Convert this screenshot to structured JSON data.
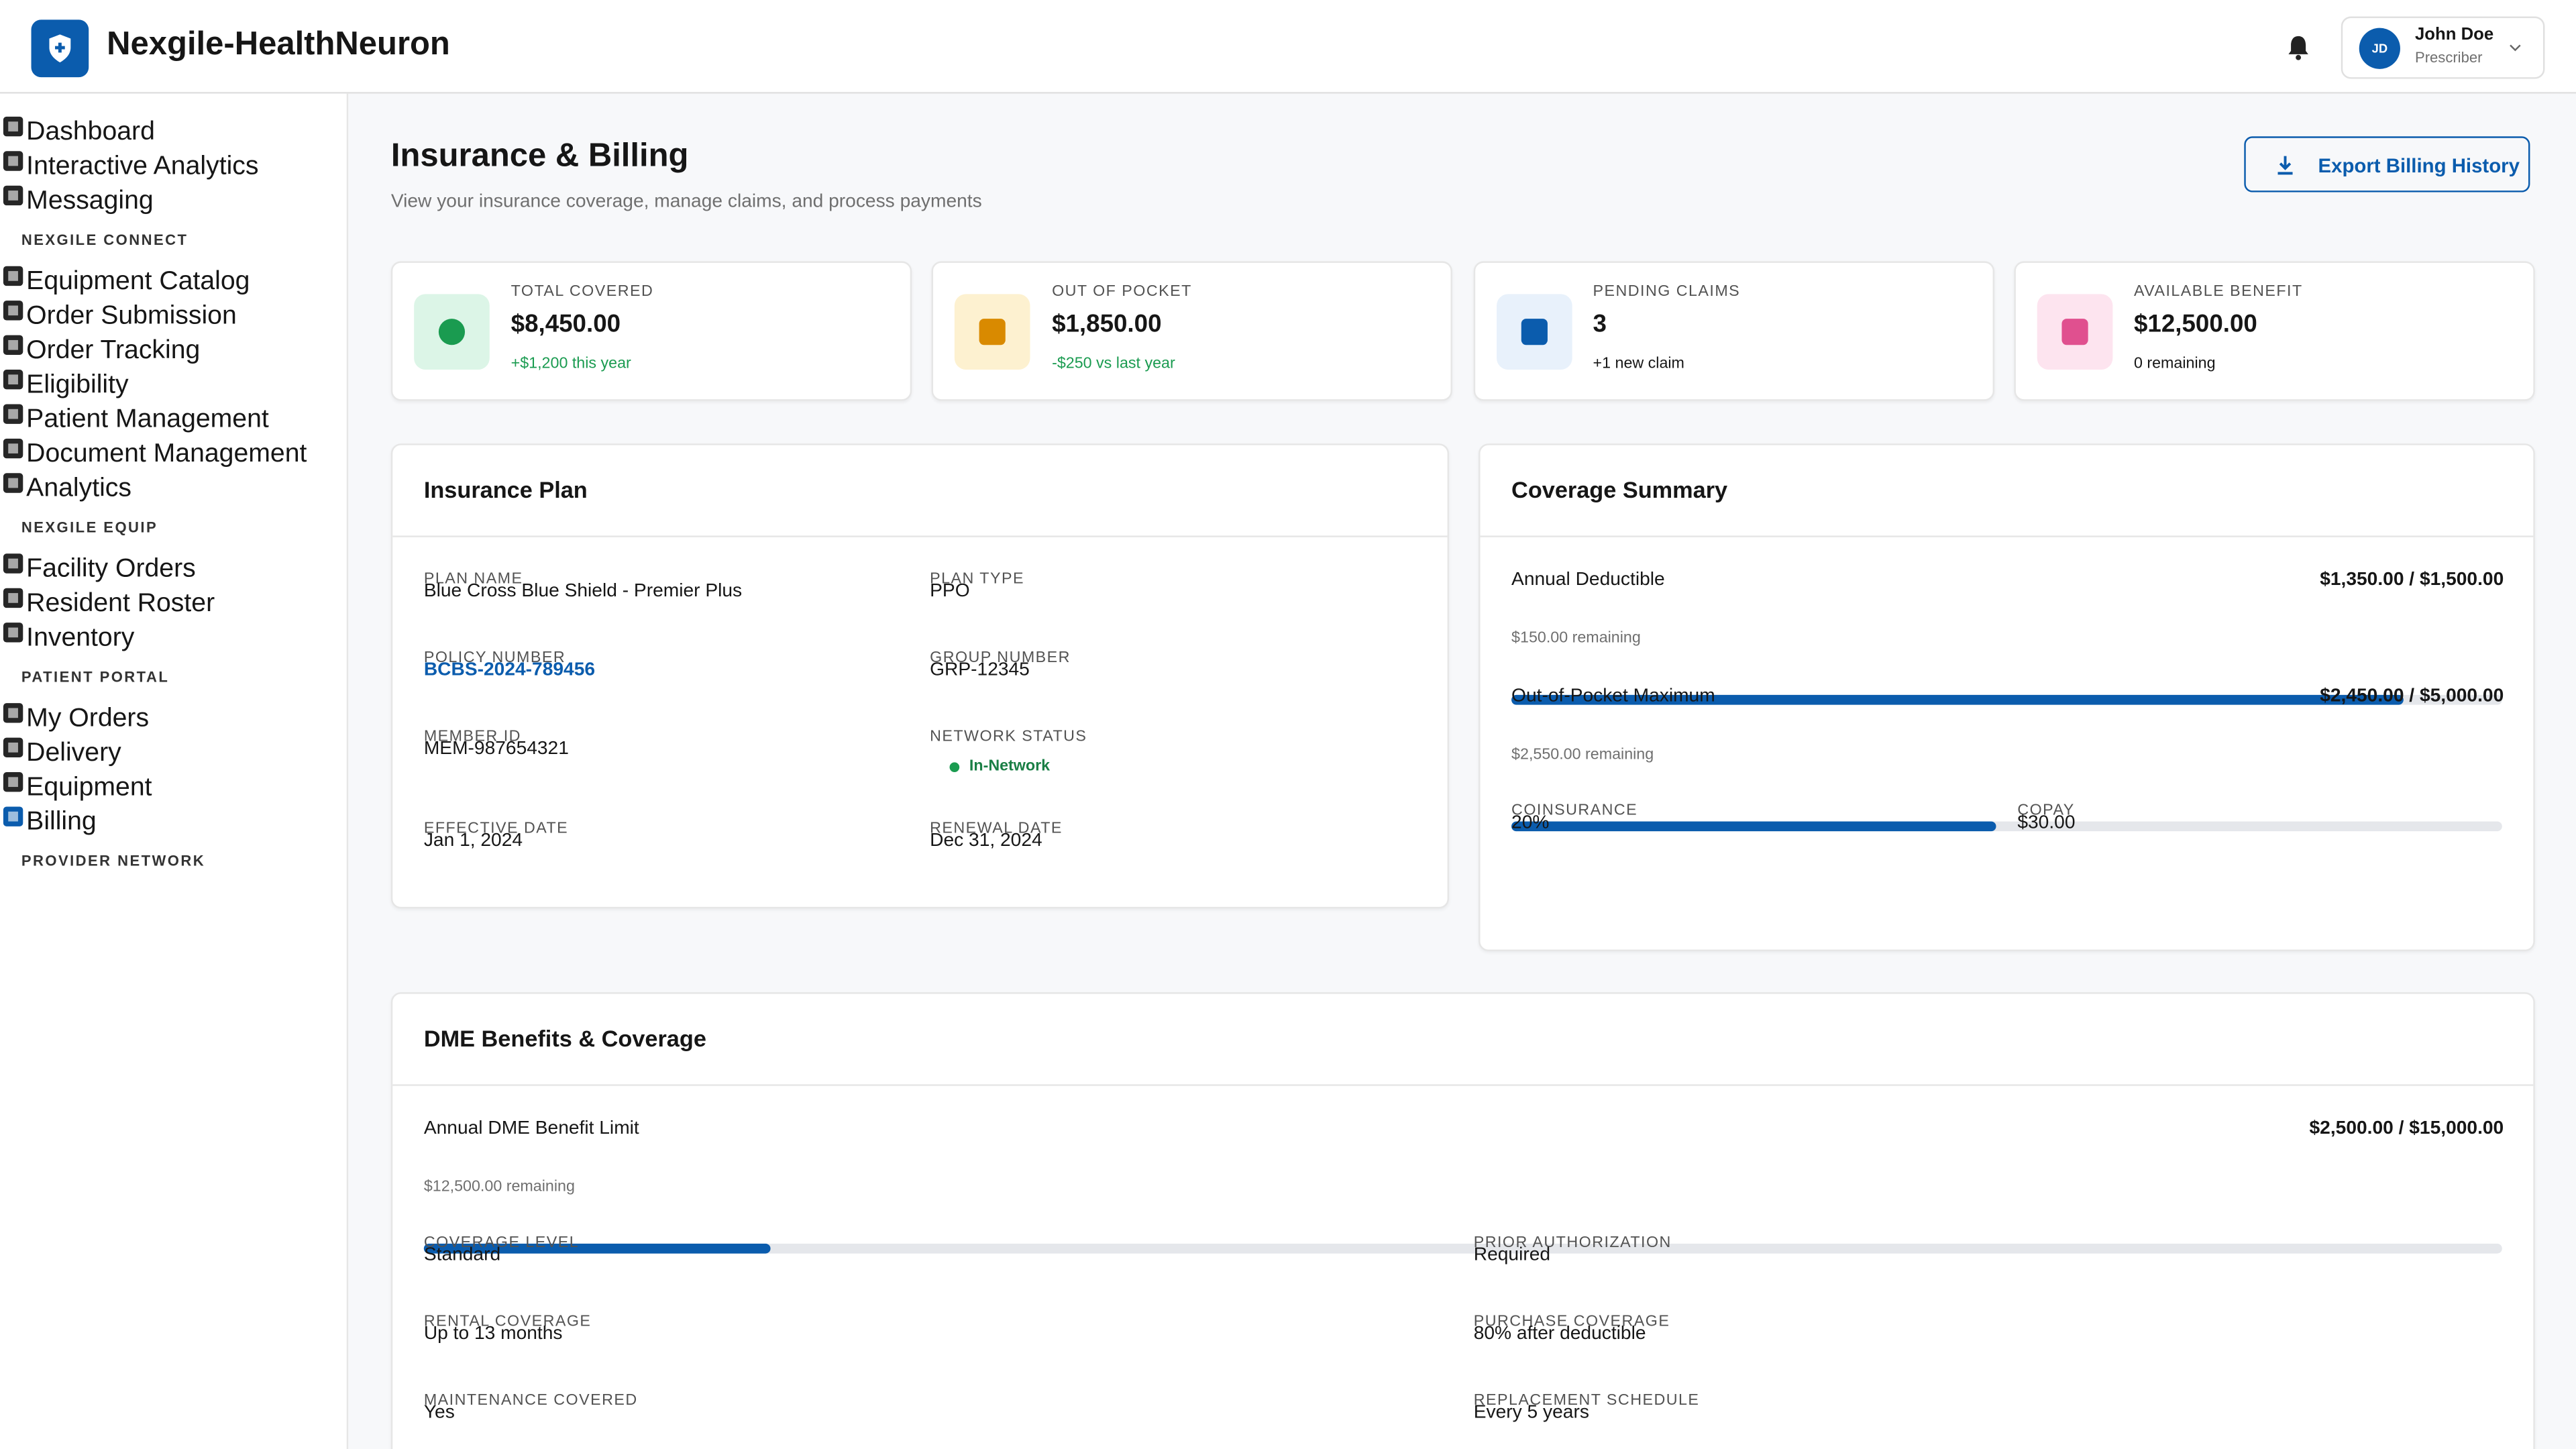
{
  "header": {
    "brand": "Nexgile-HealthNeuron",
    "user": {
      "initials": "JD",
      "name": "John Doe",
      "role": "Prescriber"
    }
  },
  "sidebar": {
    "items": [
      "Dashboard",
      "Interactive Analytics",
      "Messaging"
    ],
    "sections": [
      {
        "title": "NEXGILE CONNECT",
        "items": [
          "Equipment Catalog",
          "Order Submission",
          "Order Tracking",
          "Eligibility",
          "Patient Management",
          "Document Management",
          "Analytics"
        ]
      },
      {
        "title": "NEXGILE EQUIP",
        "items": [
          "Facility Orders",
          "Resident Roster",
          "Inventory"
        ]
      },
      {
        "title": "PATIENT PORTAL",
        "items": [
          "My Orders",
          "Delivery",
          "Equipment",
          "Billing"
        ]
      },
      {
        "title": "PROVIDER NETWORK",
        "items": []
      }
    ]
  },
  "page": {
    "title": "Insurance & Billing",
    "subtitle": "View your insurance coverage, manage claims, and process payments",
    "export_button": "Export Billing History"
  },
  "stats": [
    {
      "label": "TOTAL COVERED",
      "value": "$8,450.00",
      "note": "+$1,200 this year"
    },
    {
      "label": "OUT OF POCKET",
      "value": "$1,850.00",
      "note": "-$250 vs last year"
    },
    {
      "label": "PENDING CLAIMS",
      "value": "3",
      "note": "+1 new claim"
    },
    {
      "label": "AVAILABLE BENEFIT",
      "value": "$12,500.00",
      "note": "0 remaining"
    }
  ],
  "insurance_plan": {
    "title": "Insurance Plan",
    "fields": [
      {
        "label": "PLAN NAME",
        "value": "Blue Cross Blue Shield - Premier Plus"
      },
      {
        "label": "PLAN TYPE",
        "value": "PPO"
      },
      {
        "label": "POLICY NUMBER",
        "value": "BCBS-2024-789456"
      },
      {
        "label": "GROUP NUMBER",
        "value": "GRP-12345"
      },
      {
        "label": "MEMBER ID",
        "value": "MEM-987654321"
      },
      {
        "label": "NETWORK STATUS",
        "value": "In-Network"
      },
      {
        "label": "EFFECTIVE DATE",
        "value": "Jan 1, 2024"
      },
      {
        "label": "RENEWAL DATE",
        "value": "Dec 31, 2024"
      }
    ]
  },
  "coverage_summary": {
    "title": "Coverage Summary",
    "bars": [
      {
        "label": "Annual Deductible",
        "amount": "$1,350.00 / $1,500.00",
        "remaining": "$150.00 remaining",
        "percent": 90
      },
      {
        "label": "Out-of-Pocket Maximum",
        "amount": "$2,450.00 / $5,000.00",
        "remaining": "$2,550.00 remaining",
        "percent": 49
      }
    ],
    "fields": [
      {
        "label": "COINSURANCE",
        "value": "20%"
      },
      {
        "label": "COPAY",
        "value": "$30.00"
      }
    ]
  },
  "dme": {
    "title": "DME Benefits & Coverage",
    "bar": {
      "label": "Annual DME Benefit Limit",
      "amount": "$2,500.00 / $15,000.00",
      "remaining": "$12,500.00 remaining",
      "percent": 16.7
    },
    "fields": [
      {
        "label": "COVERAGE LEVEL",
        "value": "Standard"
      },
      {
        "label": "PRIOR AUTHORIZATION",
        "value": "Required"
      },
      {
        "label": "RENTAL COVERAGE",
        "value": "Up to 13 months"
      },
      {
        "label": "PURCHASE COVERAGE",
        "value": "80% after deductible"
      },
      {
        "label": "MAINTENANCE COVERED",
        "value": "Yes"
      },
      {
        "label": "REPLACEMENT SCHEDULE",
        "value": "Every 5 years"
      }
    ]
  }
}
